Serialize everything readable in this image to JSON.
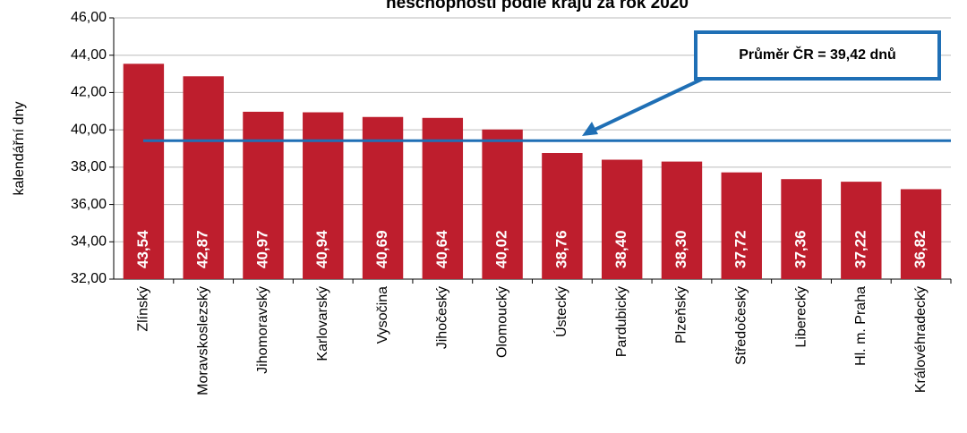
{
  "chart_data": {
    "type": "bar",
    "title": "neschopnosti podle krajů za rok 2020",
    "y_label": "kalendářní dny",
    "categories": [
      "Zlínský",
      "Moravskoslezský",
      "Jihomoravský",
      "Karlovarský",
      "Vysočina",
      "Jihočeský",
      "Olomoucký",
      "Ústecký",
      "Pardubický",
      "Plzeňský",
      "Středočeský",
      "Liberecký",
      "Hl. m. Praha",
      "Královéhradecký"
    ],
    "values": [
      43.54,
      42.87,
      40.97,
      40.94,
      40.69,
      40.64,
      40.02,
      38.76,
      38.4,
      38.3,
      37.72,
      37.36,
      37.22,
      36.82
    ],
    "value_labels": [
      "43,54",
      "42,87",
      "40,97",
      "40,94",
      "40,69",
      "40,64",
      "40,02",
      "38,76",
      "38,40",
      "38,30",
      "37,72",
      "37,36",
      "37,22",
      "36,82"
    ],
    "color": "#be1e2d",
    "ylim": [
      32,
      46
    ],
    "yticks": [
      {
        "value": 32,
        "label": "32,00"
      },
      {
        "value": 34,
        "label": "34,00"
      },
      {
        "value": 36,
        "label": "36,00"
      },
      {
        "value": 38,
        "label": "38,00"
      },
      {
        "value": 40,
        "label": "40,00"
      },
      {
        "value": 42,
        "label": "42,00"
      },
      {
        "value": 44,
        "label": "44,00"
      },
      {
        "value": 46,
        "label": "46,00"
      }
    ],
    "grid": true,
    "reference_line": {
      "value": 39.42,
      "label": "Průměr ČR = 39,42 dnů",
      "color": "#1f6fb5"
    }
  }
}
